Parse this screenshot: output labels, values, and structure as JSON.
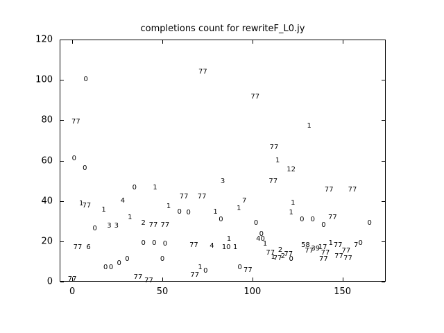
{
  "chart_data": {
    "type": "scatter",
    "title": "completions count for rewriteF_L0.jy",
    "xlabel": "",
    "ylabel": "",
    "marker_style": "text-label",
    "grid": false,
    "legend": "none",
    "xlim": [
      -7,
      174
    ],
    "ylim": [
      0,
      120
    ],
    "x_ticks": [
      0,
      50,
      100,
      150
    ],
    "y_ticks": [
      0,
      20,
      40,
      60,
      80,
      100,
      120
    ],
    "points": [
      {
        "x": 0,
        "y": 1,
        "label": "77"
      },
      {
        "x": 1,
        "y": 61,
        "label": "0"
      },
      {
        "x": 2,
        "y": 79,
        "label": "77"
      },
      {
        "x": 5,
        "y": 38.5,
        "label": "1"
      },
      {
        "x": 8,
        "y": 37.5,
        "label": "77"
      },
      {
        "x": 7,
        "y": 56,
        "label": "0"
      },
      {
        "x": 7.5,
        "y": 100,
        "label": "0"
      },
      {
        "x": 3,
        "y": 17,
        "label": "77"
      },
      {
        "x": 9,
        "y": 17,
        "label": "6"
      },
      {
        "x": 12.5,
        "y": 26,
        "label": "0"
      },
      {
        "x": 17.5,
        "y": 35.5,
        "label": "1"
      },
      {
        "x": 20.5,
        "y": 27.5,
        "label": "3"
      },
      {
        "x": 24.5,
        "y": 27.5,
        "label": "3"
      },
      {
        "x": 18.5,
        "y": 7,
        "label": "0"
      },
      {
        "x": 21.5,
        "y": 7,
        "label": "0"
      },
      {
        "x": 26,
        "y": 9,
        "label": "0"
      },
      {
        "x": 28,
        "y": 40,
        "label": "4"
      },
      {
        "x": 30.5,
        "y": 11,
        "label": "0"
      },
      {
        "x": 32,
        "y": 31.5,
        "label": "1"
      },
      {
        "x": 34.5,
        "y": 46.5,
        "label": "0"
      },
      {
        "x": 36.5,
        "y": 2,
        "label": "77"
      },
      {
        "x": 39.5,
        "y": 29,
        "label": "2"
      },
      {
        "x": 39.5,
        "y": 19,
        "label": "0"
      },
      {
        "x": 42.5,
        "y": 0.5,
        "label": "77"
      },
      {
        "x": 45,
        "y": 28,
        "label": "77"
      },
      {
        "x": 45.5,
        "y": 19,
        "label": "0"
      },
      {
        "x": 46,
        "y": 46.5,
        "label": "1"
      },
      {
        "x": 51.5,
        "y": 28,
        "label": "77"
      },
      {
        "x": 51.5,
        "y": 18.5,
        "label": "0"
      },
      {
        "x": 50,
        "y": 11,
        "label": "0"
      },
      {
        "x": 53.5,
        "y": 37,
        "label": "1"
      },
      {
        "x": 59.5,
        "y": 34.5,
        "label": "0"
      },
      {
        "x": 62,
        "y": 42,
        "label": "77"
      },
      {
        "x": 64.5,
        "y": 34,
        "label": "0"
      },
      {
        "x": 67.5,
        "y": 18,
        "label": "77"
      },
      {
        "x": 68,
        "y": 3,
        "label": "77"
      },
      {
        "x": 71,
        "y": 7,
        "label": "1"
      },
      {
        "x": 72,
        "y": 42,
        "label": "77"
      },
      {
        "x": 72.5,
        "y": 104,
        "label": "77"
      },
      {
        "x": 74,
        "y": 5,
        "label": "0"
      },
      {
        "x": 77.5,
        "y": 17.5,
        "label": "4"
      },
      {
        "x": 79.5,
        "y": 34.5,
        "label": "1"
      },
      {
        "x": 82.5,
        "y": 30.5,
        "label": "0"
      },
      {
        "x": 83.5,
        "y": 49.5,
        "label": "3"
      },
      {
        "x": 85.5,
        "y": 17,
        "label": "10"
      },
      {
        "x": 87,
        "y": 21,
        "label": "1"
      },
      {
        "x": 90.5,
        "y": 17,
        "label": "1"
      },
      {
        "x": 92.5,
        "y": 36,
        "label": "1"
      },
      {
        "x": 93,
        "y": 7,
        "label": "0"
      },
      {
        "x": 95.5,
        "y": 40,
        "label": "7"
      },
      {
        "x": 97.5,
        "y": 5.5,
        "label": "77"
      },
      {
        "x": 101.5,
        "y": 91.5,
        "label": "77"
      },
      {
        "x": 102,
        "y": 29,
        "label": "0"
      },
      {
        "x": 104.5,
        "y": 21,
        "label": "40"
      },
      {
        "x": 105,
        "y": 23.5,
        "label": "0"
      },
      {
        "x": 107,
        "y": 18.5,
        "label": "1"
      },
      {
        "x": 110,
        "y": 14,
        "label": "77"
      },
      {
        "x": 111.5,
        "y": 12,
        "label": "1"
      },
      {
        "x": 111.5,
        "y": 49.5,
        "label": "77"
      },
      {
        "x": 112,
        "y": 66.5,
        "label": "77"
      },
      {
        "x": 114,
        "y": 60,
        "label": "1"
      },
      {
        "x": 114,
        "y": 11.5,
        "label": "77"
      },
      {
        "x": 115.5,
        "y": 15.5,
        "label": "2"
      },
      {
        "x": 117,
        "y": 12.5,
        "label": "2"
      },
      {
        "x": 120,
        "y": 13.5,
        "label": "77"
      },
      {
        "x": 121.5,
        "y": 11,
        "label": "0"
      },
      {
        "x": 121.5,
        "y": 55.5,
        "label": "12"
      },
      {
        "x": 121.5,
        "y": 34,
        "label": "1"
      },
      {
        "x": 122.5,
        "y": 39,
        "label": "1"
      },
      {
        "x": 127.5,
        "y": 30.5,
        "label": "0"
      },
      {
        "x": 129.5,
        "y": 18,
        "label": "58"
      },
      {
        "x": 131.5,
        "y": 77,
        "label": "1"
      },
      {
        "x": 131.5,
        "y": 15,
        "label": "77"
      },
      {
        "x": 133.5,
        "y": 30.5,
        "label": "0"
      },
      {
        "x": 135,
        "y": 16,
        "label": "39"
      },
      {
        "x": 139,
        "y": 17,
        "label": "17"
      },
      {
        "x": 139.5,
        "y": 28,
        "label": "0"
      },
      {
        "x": 139.5,
        "y": 11,
        "label": "77"
      },
      {
        "x": 140.5,
        "y": 14,
        "label": "77"
      },
      {
        "x": 142.5,
        "y": 45.5,
        "label": "77"
      },
      {
        "x": 143.5,
        "y": 19,
        "label": "1"
      },
      {
        "x": 144.5,
        "y": 31.5,
        "label": "77"
      },
      {
        "x": 147.5,
        "y": 18,
        "label": "77"
      },
      {
        "x": 148,
        "y": 12.5,
        "label": "77"
      },
      {
        "x": 152,
        "y": 15,
        "label": "77"
      },
      {
        "x": 153,
        "y": 11.5,
        "label": "77"
      },
      {
        "x": 155.5,
        "y": 45.5,
        "label": "77"
      },
      {
        "x": 157.5,
        "y": 18,
        "label": "7"
      },
      {
        "x": 160,
        "y": 19,
        "label": "0"
      },
      {
        "x": 165,
        "y": 29,
        "label": "0"
      }
    ]
  }
}
